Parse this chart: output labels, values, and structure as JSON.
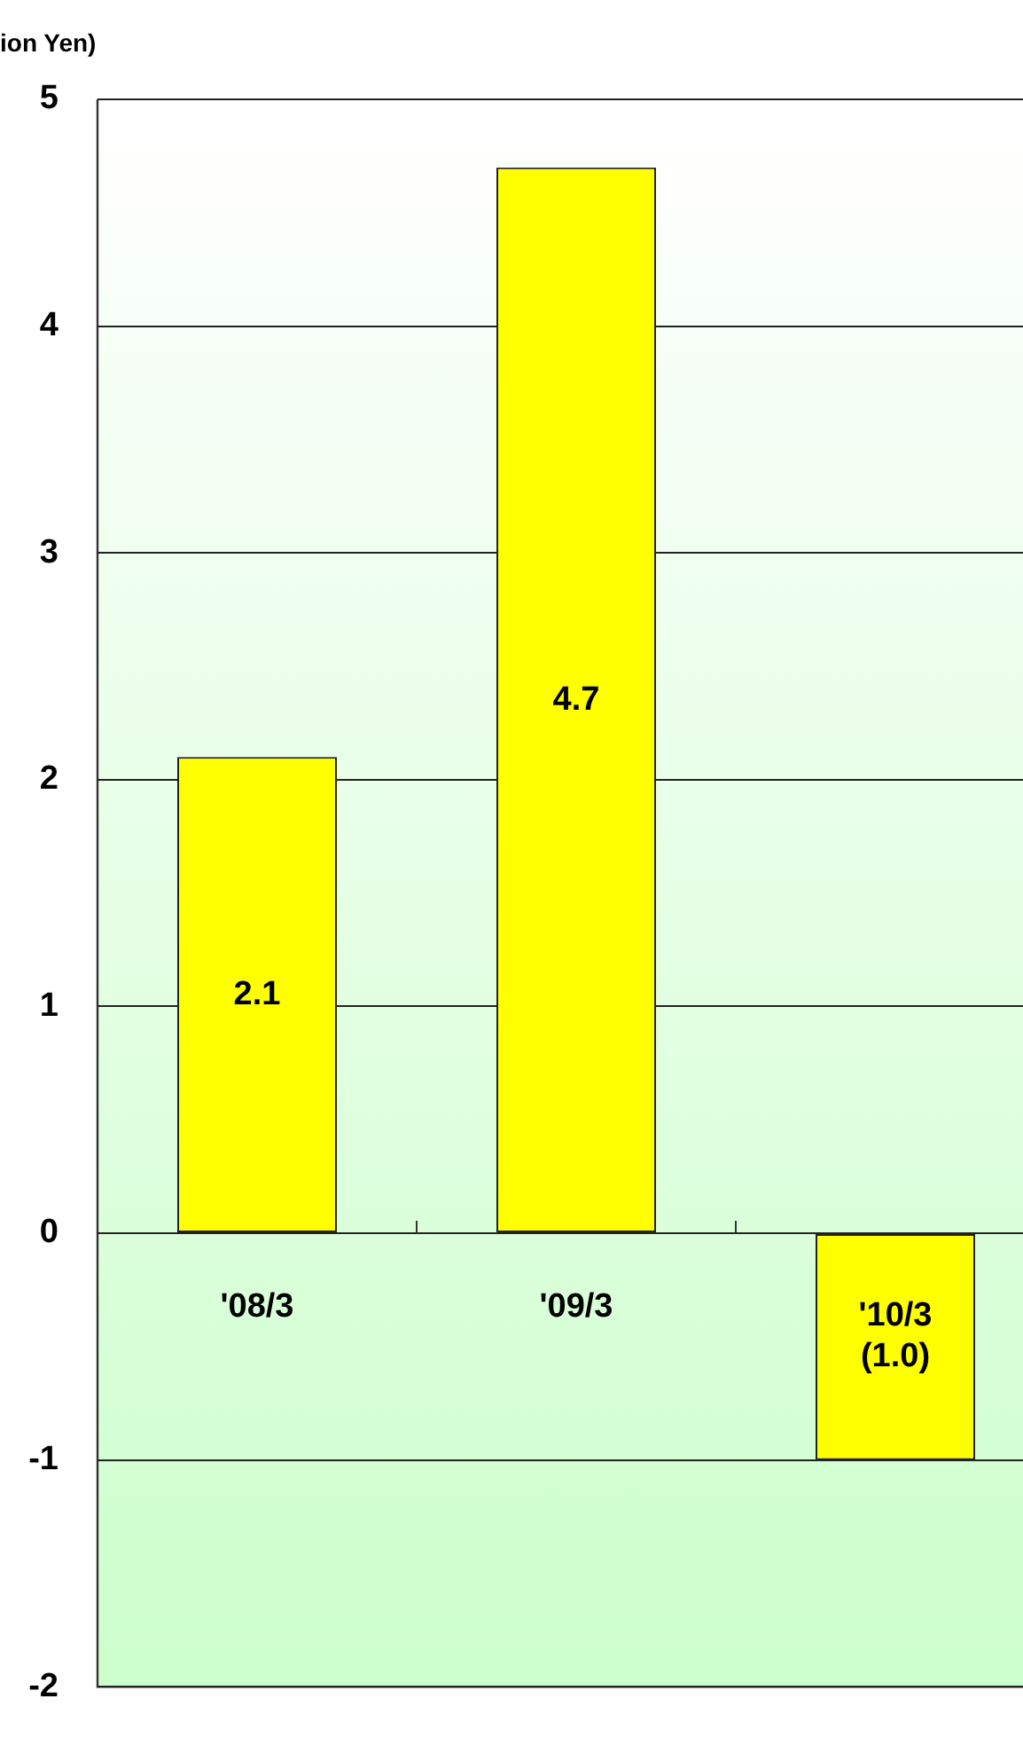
{
  "chart_data": {
    "type": "bar",
    "ylabel": "ion Yen)",
    "categories": [
      "'08/3",
      "'09/3",
      "'10/3"
    ],
    "values": [
      2.1,
      4.7,
      -1.0
    ],
    "value_labels": [
      "2.1",
      "4.7",
      "(1.0)"
    ],
    "color": "#ffff00",
    "ylim": [
      -2,
      5
    ],
    "yticks": [
      -2,
      -1,
      0,
      1,
      2,
      3,
      4,
      5
    ],
    "grid": "y",
    "legend": false
  }
}
